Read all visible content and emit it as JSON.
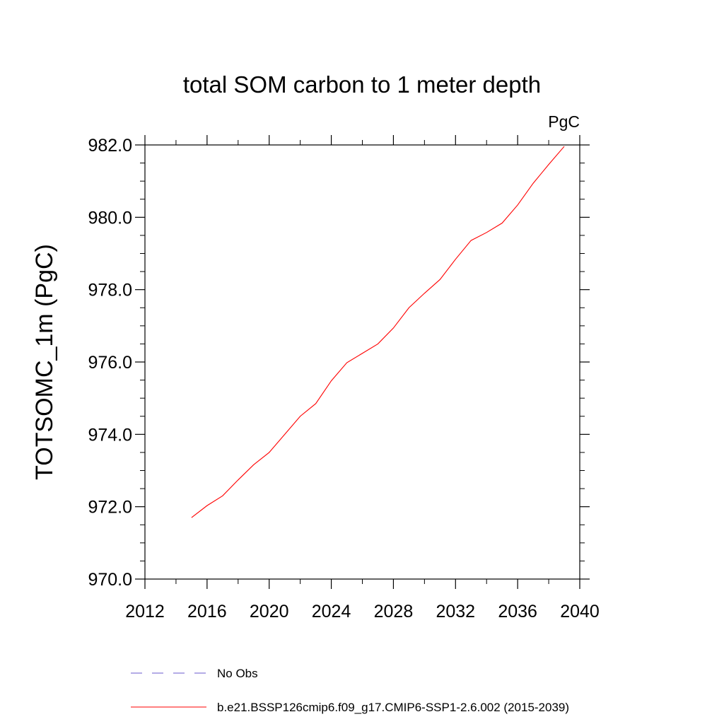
{
  "chart_data": {
    "type": "line",
    "title": "total SOM carbon to 1 meter depth",
    "units_label": "PgC",
    "ylabel": "TOTSOMC_1m  (PgC)",
    "xlabel": "",
    "xlim": [
      2012,
      2040
    ],
    "ylim": [
      970,
      982
    ],
    "x_ticks": [
      2012,
      2016,
      2020,
      2024,
      2028,
      2032,
      2036,
      2040
    ],
    "x_tick_labels": [
      "2012",
      "2016",
      "2020",
      "2024",
      "2028",
      "2032",
      "2036",
      "2040"
    ],
    "x_minor_step": 2,
    "y_ticks": [
      970,
      972,
      974,
      976,
      978,
      980,
      982
    ],
    "y_tick_labels": [
      "970.0",
      "972.0",
      "974.0",
      "976.0",
      "978.0",
      "980.0",
      "982.0"
    ],
    "y_minor_step": 0.5,
    "series": [
      {
        "name": "b.e21.BSSP126cmip6.f09_g17.CMIP6-SSP1-2.6.002 (2015-2039)",
        "color": "#ff0000",
        "style": "solid",
        "x": [
          2015,
          2016,
          2017,
          2018,
          2019,
          2020,
          2021,
          2022,
          2023,
          2024,
          2025,
          2026,
          2027,
          2028,
          2029,
          2030,
          2031,
          2032,
          2033,
          2034,
          2035,
          2036,
          2037,
          2038,
          2039
        ],
        "values": [
          971.7,
          972.03,
          972.3,
          972.74,
          973.16,
          973.5,
          974.0,
          974.5,
          974.85,
          975.48,
          975.98,
          976.24,
          976.5,
          976.94,
          977.5,
          977.9,
          978.28,
          978.84,
          979.36,
          979.58,
          979.84,
          980.34,
          980.94,
          981.46,
          981.96
        ]
      }
    ],
    "legend": [
      {
        "label": "No Obs",
        "color": "#6a5acd",
        "style": "dashed"
      },
      {
        "label": "b.e21.BSSP126cmip6.f09_g17.CMIP6-SSP1-2.6.002 (2015-2039)",
        "color": "#ff0000",
        "style": "solid"
      }
    ],
    "legend_position": "bottom",
    "grid": false
  }
}
